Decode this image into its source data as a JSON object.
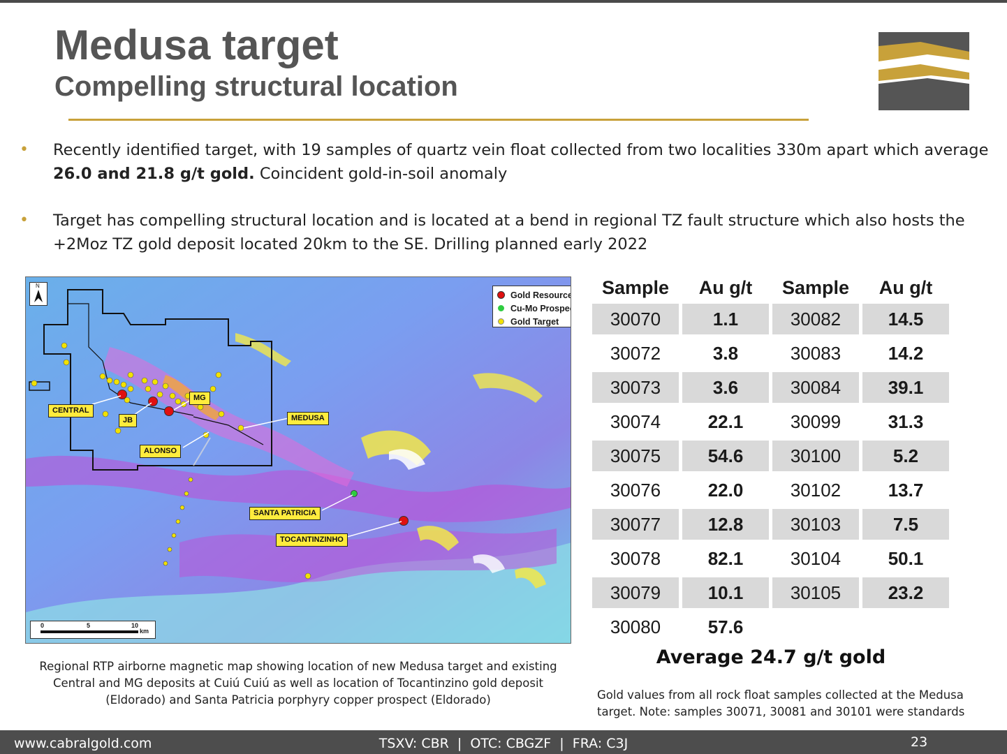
{
  "header": {
    "title": "Medusa target",
    "subtitle": "Compelling structural location"
  },
  "bullets": [
    {
      "text_before": "Recently identified target, with 19 samples of quartz vein float collected from two localities 330m apart which average ",
      "bold": "26.0 and 21.8 g/t gold.",
      "text_after": " Coincident gold-in-soil anomaly"
    },
    {
      "text_before": "Target has compelling structural location and is located at a bend in regional TZ fault structure which also hosts the +2Moz TZ gold deposit located 20km to the SE. Drilling planned early 2022",
      "bold": "",
      "text_after": ""
    }
  ],
  "map": {
    "legend": {
      "gold_resource": "Gold Resource",
      "cu_mo_prospect": "Cu-Mo Prospect",
      "gold_target": "Gold Target"
    },
    "labels": {
      "central": "CENTRAL",
      "jb": "JB",
      "mg": "MG",
      "alonso": "ALONSO",
      "medusa": "MEDUSA",
      "santa_patricia": "SANTA PATRICIA",
      "tocantinzinho": "TOCANTINZINHO"
    },
    "north": "N",
    "scale": {
      "t0": "0",
      "t5": "5",
      "t10": "10",
      "unit": "km"
    },
    "colors": {
      "gold_resource": "#e01010",
      "cu_mo_prospect": "#2ecc40",
      "gold_target": "#f2e200"
    },
    "caption": "Regional RTP airborne magnetic map showing location of new Medusa target and existing Central and MG deposits at Cuiú Cuiú as well as location of Tocantinzino gold deposit (Eldorado) and Santa Patricia porphyry copper prospect (Eldorado)"
  },
  "table": {
    "headers": [
      "Sample",
      "Au g/t",
      "Sample",
      "Au g/t"
    ],
    "rows": [
      [
        "30070",
        "1.1",
        "30082",
        "14.5"
      ],
      [
        "30072",
        "3.8",
        "30083",
        "14.2"
      ],
      [
        "30073",
        "3.6",
        "30084",
        "39.1"
      ],
      [
        "30074",
        "22.1",
        "30099",
        "31.3"
      ],
      [
        "30075",
        "54.6",
        "30100",
        "5.2"
      ],
      [
        "30076",
        "22.0",
        "30102",
        "13.7"
      ],
      [
        "30077",
        "12.8",
        "30103",
        "7.5"
      ],
      [
        "30078",
        "82.1",
        "30104",
        "50.1"
      ],
      [
        "30079",
        "10.1",
        "30105",
        "23.2"
      ],
      [
        "30080",
        "57.6",
        "",
        ""
      ]
    ],
    "average": "Average 24.7 g/t gold",
    "note": "Gold values from all rock float samples collected at the Medusa target. Note: samples 30071, 30081 and 30101 were standards"
  },
  "footer": {
    "url": "www.cabralgold.com",
    "tickers": "TSXV: CBR  |  OTC: CBGZF  |  FRA: C3J",
    "page": "23"
  },
  "logo": {
    "colors": {
      "gold": "#c8a13a",
      "gray": "#555555"
    }
  }
}
